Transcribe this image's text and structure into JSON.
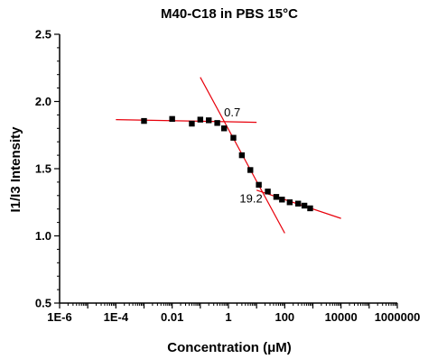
{
  "chart_data": {
    "type": "scatter",
    "title": "M40-C18 in PBS 15°C",
    "xlabel": "Concentration (μM)",
    "ylabel": "I1/I3 Intensity",
    "xscale": "log",
    "xlim": [
      1e-06,
      1000000
    ],
    "ylim": [
      0.5,
      2.5
    ],
    "xticks": [
      1e-06,
      0.0001,
      0.01,
      1,
      100,
      10000,
      1000000
    ],
    "xtick_labels": [
      "1E-6",
      "1E-4",
      "0.01",
      "1",
      "100",
      "10000",
      "1000000"
    ],
    "yticks": [
      0.5,
      1.0,
      1.5,
      2.0,
      2.5
    ],
    "ytick_labels": [
      "0.5",
      "1.0",
      "1.5",
      "2.0",
      "2.5"
    ],
    "grid": false,
    "series": [
      {
        "marker": "square",
        "color": "#000000",
        "x": [
          0.001,
          0.01,
          0.05,
          0.1,
          0.2,
          0.4,
          0.7,
          1.5,
          3,
          6,
          12,
          25,
          50,
          80,
          150,
          300,
          500,
          800
        ],
        "y": [
          1.855,
          1.87,
          1.835,
          1.865,
          1.86,
          1.84,
          1.8,
          1.73,
          1.6,
          1.49,
          1.38,
          1.33,
          1.29,
          1.27,
          1.25,
          1.24,
          1.225,
          1.205
        ]
      }
    ],
    "fit_lines": [
      {
        "color": "#e8000b",
        "x": [
          0.0001,
          10
        ],
        "y": [
          1.865,
          1.845
        ]
      },
      {
        "color": "#e8000b",
        "x": [
          0.1,
          100
        ],
        "y": [
          2.18,
          1.02
        ]
      },
      {
        "color": "#e8000b",
        "x": [
          10,
          10000
        ],
        "y": [
          1.34,
          1.13
        ]
      }
    ],
    "annotations": [
      {
        "text": "0.7",
        "x": 0.7,
        "y": 1.89
      },
      {
        "text": "19.2",
        "x": 2.5,
        "y": 1.25
      }
    ]
  }
}
